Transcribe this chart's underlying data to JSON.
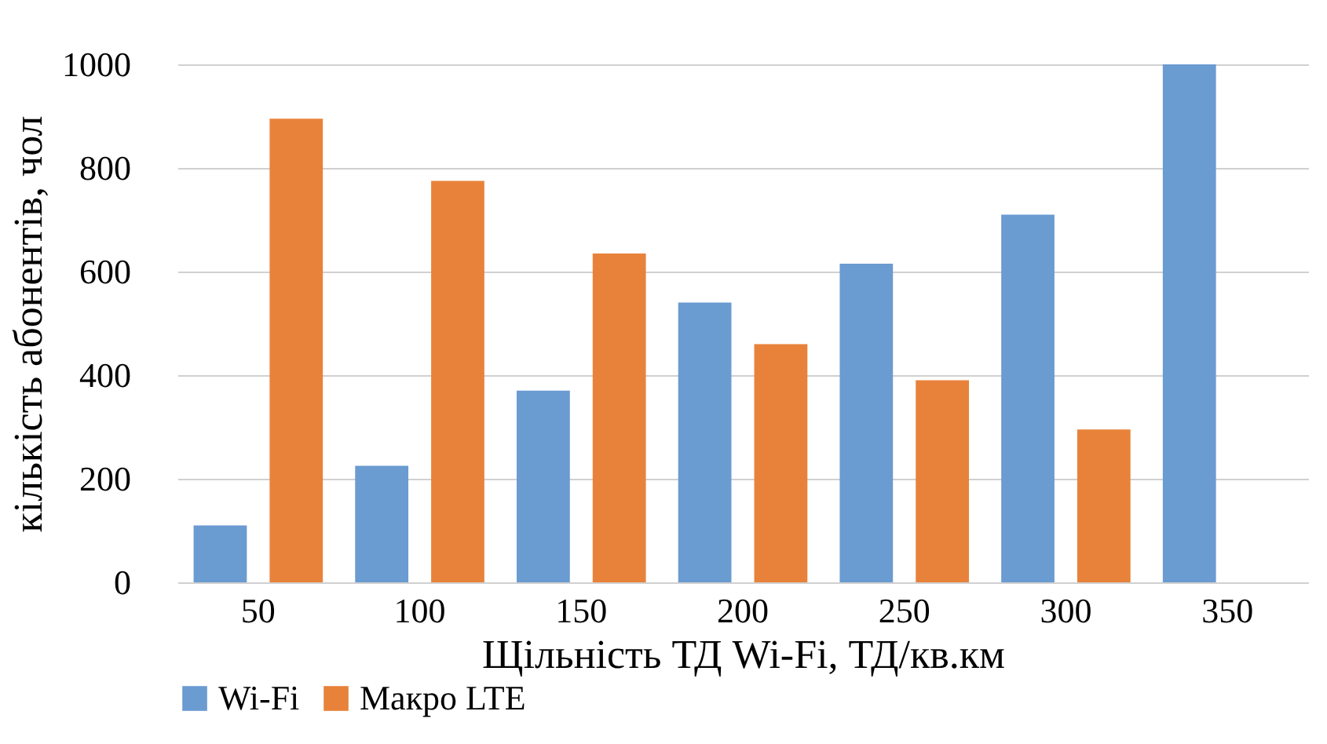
{
  "chart_data": {
    "type": "bar",
    "xlabel": "Щільність ТД Wi-Fi, ТД/кв.км",
    "ylabel": "кількість абонентів, чол",
    "categories": [
      "50",
      "100",
      "150",
      "200",
      "250",
      "300",
      "350"
    ],
    "series": [
      {
        "name": "Wi-Fi",
        "color": "#6a9bd1",
        "values": [
          110,
          225,
          370,
          540,
          615,
          710,
          1000
        ]
      },
      {
        "name": "Макро LTE",
        "color": "#e8823a",
        "values": [
          895,
          775,
          635,
          460,
          390,
          295,
          null
        ]
      }
    ],
    "ylim": [
      0,
      1000
    ],
    "yticks": [
      0,
      200,
      400,
      600,
      800,
      1000
    ],
    "grid": "y",
    "legend": "bottom"
  }
}
